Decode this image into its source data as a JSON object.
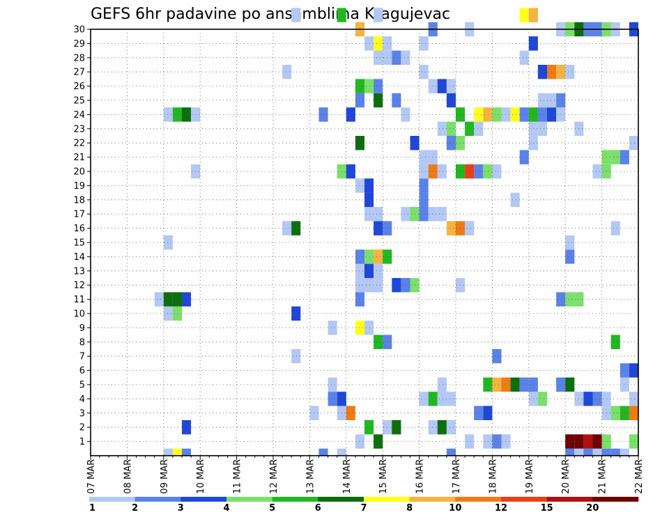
{
  "chart_data": {
    "type": "heatmap",
    "title": "GEFS 6hr padavine po ansamblima Kragujevac",
    "xlabel": "",
    "ylabel": "",
    "x_tick_labels": [
      "07 MAR",
      "08 MAR",
      "09 MAR",
      "10 MAR",
      "11 MAR",
      "12 MAR",
      "13 MAR",
      "14 MAR",
      "15 MAR",
      "16 MAR",
      "17 MAR",
      "18 MAR",
      "19 MAR",
      "20 MAR",
      "21 MAR",
      "22 MAR"
    ],
    "y_tick_labels": [
      "1",
      "2",
      "3",
      "4",
      "5",
      "6",
      "7",
      "8",
      "9",
      "10",
      "11",
      "12",
      "13",
      "14",
      "15",
      "16",
      "17",
      "18",
      "19",
      "20",
      "21",
      "22",
      "23",
      "24",
      "25",
      "26",
      "27",
      "28",
      "29",
      "30"
    ],
    "ylim": [
      0,
      30
    ],
    "grid": true,
    "colorbar": {
      "labels": [
        "1",
        "2",
        "3",
        "4",
        "5",
        "6",
        "7",
        "8",
        "10",
        "12",
        "15",
        "20"
      ],
      "colors": [
        "#b3c8f5",
        "#5a82e8",
        "#1f47d8",
        "#7ae06a",
        "#21b721",
        "#0c6e0c",
        "#ffff1a",
        "#f5b340",
        "#f07a15",
        "#e8401a",
        "#b01010",
        "#6e0000"
      ]
    },
    "legend_position": "bottom",
    "cells": [
      [
        9,
        0,
        1
      ],
      [
        9.25,
        0,
        7
      ],
      [
        9.5,
        0,
        2
      ],
      [
        13.25,
        0,
        2
      ],
      [
        13.75,
        0,
        1
      ],
      [
        16.75,
        0,
        2
      ],
      [
        20,
        0,
        2
      ],
      [
        20.25,
        0,
        1
      ],
      [
        20.5,
        0,
        2
      ],
      [
        20.75,
        0,
        1
      ],
      [
        21,
        0,
        2
      ],
      [
        21.25,
        0,
        2
      ],
      [
        21.5,
        0,
        1
      ],
      [
        14.25,
        1,
        1
      ],
      [
        14.75,
        1,
        6
      ],
      [
        17.25,
        1,
        1
      ],
      [
        17.75,
        1,
        1
      ],
      [
        18,
        1,
        2
      ],
      [
        18.25,
        1,
        1
      ],
      [
        20,
        1,
        12
      ],
      [
        20.25,
        1,
        12
      ],
      [
        20.5,
        1,
        11
      ],
      [
        20.75,
        1,
        12
      ],
      [
        21,
        1,
        4
      ],
      [
        21.75,
        1,
        4
      ],
      [
        9.5,
        2,
        3
      ],
      [
        14.5,
        2,
        5
      ],
      [
        15,
        2,
        1
      ],
      [
        15.25,
        2,
        6
      ],
      [
        16.25,
        2,
        1
      ],
      [
        16.5,
        2,
        6
      ],
      [
        16.75,
        2,
        1
      ],
      [
        13,
        3,
        1
      ],
      [
        13.75,
        3,
        1
      ],
      [
        14,
        3,
        9
      ],
      [
        17.5,
        3,
        2
      ],
      [
        17.75,
        3,
        3
      ],
      [
        21,
        3,
        1
      ],
      [
        21.25,
        3,
        4
      ],
      [
        21.5,
        3,
        5
      ],
      [
        21.75,
        3,
        9
      ],
      [
        13.5,
        4,
        2
      ],
      [
        13.75,
        4,
        3
      ],
      [
        16,
        4,
        1
      ],
      [
        16.25,
        4,
        5
      ],
      [
        16.5,
        4,
        1
      ],
      [
        16.75,
        4,
        1
      ],
      [
        19,
        4,
        1
      ],
      [
        19.25,
        4,
        4
      ],
      [
        20.25,
        4,
        1
      ],
      [
        20.5,
        4,
        3
      ],
      [
        20.75,
        4,
        2
      ],
      [
        21,
        4,
        1
      ],
      [
        21.75,
        4,
        1
      ],
      [
        13.5,
        5,
        1
      ],
      [
        16.5,
        5,
        1
      ],
      [
        17.75,
        5,
        5
      ],
      [
        18,
        5,
        8
      ],
      [
        18.25,
        5,
        9
      ],
      [
        18.5,
        5,
        6
      ],
      [
        18.75,
        5,
        2
      ],
      [
        19,
        5,
        2
      ],
      [
        19.75,
        5,
        2
      ],
      [
        20,
        5,
        6
      ],
      [
        21.5,
        5,
        1
      ],
      [
        21.5,
        6,
        2
      ],
      [
        21.75,
        6,
        3
      ],
      [
        12.5,
        7,
        1
      ],
      [
        18,
        7,
        2
      ],
      [
        14.75,
        8,
        5
      ],
      [
        15,
        8,
        2
      ],
      [
        21.25,
        8,
        5
      ],
      [
        13.5,
        9,
        1
      ],
      [
        14.25,
        9,
        7
      ],
      [
        14.5,
        9,
        1
      ],
      [
        9,
        10,
        1
      ],
      [
        9.25,
        10,
        4
      ],
      [
        12.5,
        10,
        3
      ],
      [
        8.75,
        11,
        1
      ],
      [
        9,
        11,
        6
      ],
      [
        9.25,
        11,
        6
      ],
      [
        9.5,
        11,
        3
      ],
      [
        14.25,
        11,
        2
      ],
      [
        19.75,
        11,
        2
      ],
      [
        20,
        11,
        4
      ],
      [
        20.25,
        11,
        4
      ],
      [
        14.25,
        12,
        1
      ],
      [
        14.5,
        12,
        1
      ],
      [
        14.75,
        12,
        1
      ],
      [
        15.25,
        12,
        3
      ],
      [
        15.5,
        12,
        2
      ],
      [
        15.75,
        12,
        4
      ],
      [
        17,
        12,
        1
      ],
      [
        14.25,
        13,
        1
      ],
      [
        14.5,
        13,
        3
      ],
      [
        14.75,
        13,
        1
      ],
      [
        14.25,
        14,
        2
      ],
      [
        14.5,
        14,
        4
      ],
      [
        14.75,
        14,
        8
      ],
      [
        15,
        14,
        5
      ],
      [
        20,
        14,
        2
      ],
      [
        9,
        15,
        1
      ],
      [
        20,
        15,
        1
      ],
      [
        12.25,
        16,
        1
      ],
      [
        12.5,
        16,
        6
      ],
      [
        14.75,
        16,
        3
      ],
      [
        15,
        16,
        2
      ],
      [
        16.75,
        16,
        8
      ],
      [
        17,
        16,
        9
      ],
      [
        17.25,
        16,
        1
      ],
      [
        21.25,
        16,
        1
      ],
      [
        14.5,
        17,
        1
      ],
      [
        14.75,
        17,
        1
      ],
      [
        15.5,
        17,
        1
      ],
      [
        15.75,
        17,
        4
      ],
      [
        16,
        17,
        2
      ],
      [
        16.25,
        17,
        1
      ],
      [
        16.5,
        17,
        1
      ],
      [
        14.5,
        18,
        3
      ],
      [
        16,
        18,
        2
      ],
      [
        18.5,
        18,
        1
      ],
      [
        14.25,
        19,
        1
      ],
      [
        14.5,
        19,
        3
      ],
      [
        16,
        19,
        2
      ],
      [
        9.75,
        20,
        1
      ],
      [
        13.75,
        20,
        4
      ],
      [
        14,
        20,
        3
      ],
      [
        16,
        20,
        1
      ],
      [
        16.25,
        20,
        9
      ],
      [
        16.5,
        20,
        1
      ],
      [
        17,
        20,
        5
      ],
      [
        17.25,
        20,
        10
      ],
      [
        17.5,
        20,
        2
      ],
      [
        17.75,
        20,
        4
      ],
      [
        18,
        20,
        1
      ],
      [
        20.75,
        20,
        1
      ],
      [
        21,
        20,
        4
      ],
      [
        16,
        21,
        1
      ],
      [
        16.25,
        21,
        1
      ],
      [
        18.75,
        21,
        2
      ],
      [
        21,
        21,
        4
      ],
      [
        21.25,
        21,
        4
      ],
      [
        21.5,
        21,
        2
      ],
      [
        14.25,
        22,
        6
      ],
      [
        15.75,
        22,
        3
      ],
      [
        16.75,
        22,
        2
      ],
      [
        17,
        22,
        4
      ],
      [
        19,
        22,
        1
      ],
      [
        21.75,
        22,
        1
      ],
      [
        16.5,
        23,
        1
      ],
      [
        16.75,
        23,
        4
      ],
      [
        17.25,
        23,
        5
      ],
      [
        17.5,
        23,
        1
      ],
      [
        19,
        23,
        1
      ],
      [
        19.25,
        23,
        1
      ],
      [
        20.25,
        23,
        1
      ],
      [
        9,
        24,
        1
      ],
      [
        9.25,
        24,
        5
      ],
      [
        9.5,
        24,
        6
      ],
      [
        9.75,
        24,
        1
      ],
      [
        13.25,
        24,
        2
      ],
      [
        14,
        24,
        3
      ],
      [
        15.5,
        24,
        1
      ],
      [
        17,
        24,
        5
      ],
      [
        17.5,
        24,
        7
      ],
      [
        17.75,
        24,
        8
      ],
      [
        18,
        24,
        4
      ],
      [
        18.25,
        24,
        1
      ],
      [
        18.5,
        24,
        7
      ],
      [
        18.75,
        24,
        2
      ],
      [
        19,
        24,
        5
      ],
      [
        19.25,
        24,
        2
      ],
      [
        19.5,
        24,
        3
      ],
      [
        19.75,
        24,
        1
      ],
      [
        14.25,
        25,
        2
      ],
      [
        14.75,
        25,
        6
      ],
      [
        15.25,
        25,
        2
      ],
      [
        16.75,
        25,
        3
      ],
      [
        19.25,
        25,
        1
      ],
      [
        19.5,
        25,
        1
      ],
      [
        19.75,
        25,
        2
      ],
      [
        14.25,
        26,
        5
      ],
      [
        14.5,
        26,
        4
      ],
      [
        14.75,
        26,
        2
      ],
      [
        16.25,
        26,
        1
      ],
      [
        16.5,
        26,
        3
      ],
      [
        16.75,
        26,
        1
      ],
      [
        12.25,
        27,
        1
      ],
      [
        16,
        27,
        1
      ],
      [
        19.25,
        27,
        3
      ],
      [
        19.5,
        27,
        9
      ],
      [
        19.75,
        27,
        8
      ],
      [
        20,
        27,
        1
      ],
      [
        14.75,
        28,
        1
      ],
      [
        15,
        28,
        1
      ],
      [
        15.25,
        28,
        2
      ],
      [
        15.5,
        28,
        1
      ],
      [
        18.75,
        28,
        1
      ],
      [
        14.5,
        29,
        1
      ],
      [
        14.75,
        29,
        7
      ],
      [
        15,
        29,
        1
      ],
      [
        16,
        29,
        1
      ],
      [
        19,
        29,
        3
      ],
      [
        14.25,
        30,
        8
      ],
      [
        16.25,
        30,
        2
      ],
      [
        17.25,
        30,
        1
      ],
      [
        19.75,
        30,
        1
      ],
      [
        20,
        30,
        4
      ],
      [
        20.25,
        30,
        6
      ],
      [
        20.5,
        30,
        2
      ],
      [
        20.75,
        30,
        2
      ],
      [
        21,
        30,
        4
      ],
      [
        21.25,
        30,
        1
      ],
      [
        21.75,
        30,
        3
      ],
      [
        12.5,
        31,
        1
      ],
      [
        13.75,
        31,
        5
      ],
      [
        14.75,
        31,
        1
      ],
      [
        18.75,
        31,
        7
      ],
      [
        19,
        31,
        8
      ]
    ]
  }
}
